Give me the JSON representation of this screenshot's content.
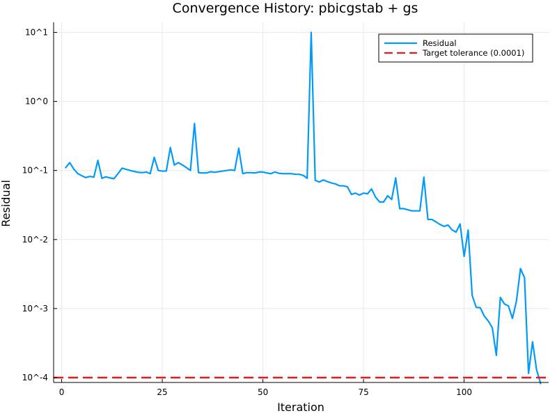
{
  "chart_data": {
    "type": "line",
    "title": "Convergence History: pbicgstab + gs",
    "xlabel": "Iteration",
    "ylabel": "Residual",
    "xlim": [
      -2,
      121
    ],
    "ylim": [
      8.5e-05,
      14
    ],
    "yscale": "log",
    "grid": true,
    "legend_position": "top-right",
    "xticks": [
      0,
      25,
      50,
      75,
      100
    ],
    "xtick_labels": [
      "0",
      "25",
      "50",
      "75",
      "100"
    ],
    "yticks": [
      0.0001,
      0.001,
      0.01,
      0.1,
      1,
      10
    ],
    "ytick_labels": [
      "10^-4",
      "10^-3",
      "10^-2",
      "10^-1",
      "10^0",
      "10^1"
    ],
    "series": [
      {
        "name": "Residual",
        "color": "#009af9",
        "style": "solid",
        "x": [
          1,
          2,
          3,
          4,
          5,
          6,
          7,
          8,
          9,
          10,
          11,
          12,
          13,
          14,
          15,
          16,
          17,
          18,
          19,
          20,
          21,
          22,
          23,
          24,
          25,
          26,
          27,
          28,
          29,
          30,
          31,
          32,
          33,
          34,
          35,
          36,
          37,
          38,
          39,
          40,
          41,
          42,
          43,
          44,
          45,
          46,
          47,
          48,
          49,
          50,
          51,
          52,
          53,
          54,
          55,
          56,
          57,
          58,
          59,
          60,
          61,
          62,
          63,
          64,
          65,
          66,
          67,
          68,
          69,
          70,
          71,
          72,
          73,
          74,
          75,
          76,
          77,
          78,
          79,
          80,
          81,
          82,
          83,
          84,
          85,
          86,
          87,
          88,
          89,
          90,
          91,
          92,
          93,
          94,
          95,
          96,
          97,
          98,
          99,
          100,
          101,
          102,
          103,
          104,
          105,
          106,
          107,
          108,
          109,
          110,
          111,
          112,
          113,
          114,
          115,
          116,
          117,
          118,
          119
        ],
        "y": [
          0.11,
          0.13,
          0.105,
          0.09,
          0.084,
          0.079,
          0.082,
          0.08,
          0.14,
          0.077,
          0.081,
          0.078,
          0.076,
          0.09,
          0.108,
          0.104,
          0.1,
          0.097,
          0.094,
          0.093,
          0.095,
          0.09,
          0.155,
          0.1,
          0.098,
          0.098,
          0.215,
          0.12,
          0.13,
          0.12,
          0.11,
          0.1,
          0.48,
          0.093,
          0.092,
          0.092,
          0.096,
          0.094,
          0.096,
          0.098,
          0.1,
          0.102,
          0.1,
          0.21,
          0.09,
          0.093,
          0.093,
          0.092,
          0.095,
          0.095,
          0.092,
          0.09,
          0.095,
          0.091,
          0.09,
          0.09,
          0.09,
          0.088,
          0.088,
          0.085,
          0.077,
          10,
          0.072,
          0.068,
          0.073,
          0.069,
          0.066,
          0.064,
          0.06,
          0.06,
          0.058,
          0.045,
          0.047,
          0.044,
          0.047,
          0.046,
          0.054,
          0.041,
          0.035,
          0.035,
          0.043,
          0.038,
          0.078,
          0.028,
          0.028,
          0.027,
          0.026,
          0.026,
          0.026,
          0.08,
          0.0195,
          0.0195,
          0.018,
          0.0165,
          0.0155,
          0.0162,
          0.0138,
          0.0128,
          0.0168,
          0.0057,
          0.0137,
          0.00155,
          0.00104,
          0.00103,
          0.00078,
          0.00066,
          0.00053,
          0.00021,
          0.00145,
          0.00117,
          0.00109,
          0.00072,
          0.00128,
          0.0038,
          0.0028,
          0.000115,
          0.00033,
          0.00013,
          8.2e-05
        ]
      },
      {
        "name": "Target tolerance (0.0001)",
        "color": "#e8191c",
        "style": "dashed",
        "y_constant": 0.0001
      }
    ]
  }
}
